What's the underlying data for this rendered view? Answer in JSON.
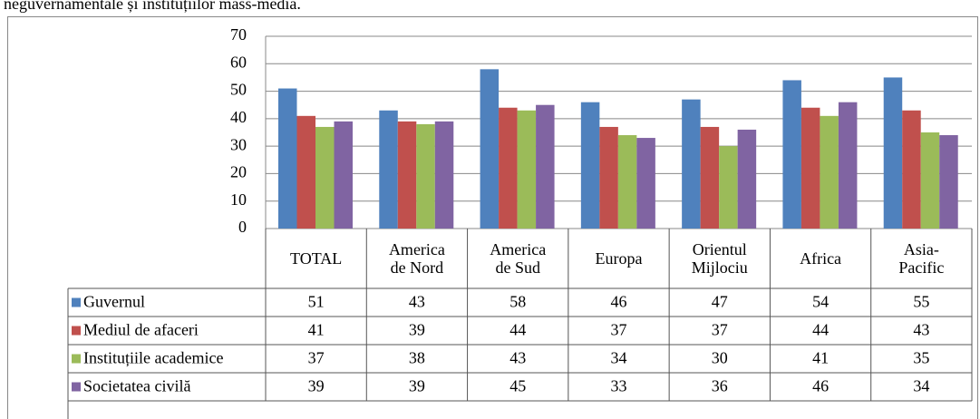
{
  "chart_data": {
    "type": "bar",
    "title": "neguvernamentale și instituțiilor mass-media.",
    "categories": [
      "TOTAL",
      "America de Nord",
      "America de Sud",
      "Europa",
      "Orientul Mijlociu",
      "Africa",
      "Asia-Pacific"
    ],
    "series": [
      {
        "name": "Guvernul",
        "color": "#4f81bd",
        "values": [
          51,
          43,
          58,
          46,
          47,
          54,
          55
        ]
      },
      {
        "name": "Mediul de afaceri",
        "color": "#c0504d",
        "values": [
          41,
          39,
          44,
          37,
          37,
          44,
          43
        ]
      },
      {
        "name": "Instituțiile academice",
        "color": "#9bbb59",
        "values": [
          37,
          38,
          43,
          34,
          30,
          41,
          35
        ]
      },
      {
        "name": "Societatea civilă",
        "color": "#8064a2",
        "values": [
          39,
          39,
          45,
          33,
          36,
          46,
          34
        ]
      }
    ],
    "ylim": [
      0,
      70
    ],
    "yticks": [
      0,
      10,
      20,
      30,
      40,
      50,
      60,
      70
    ],
    "grid": true
  }
}
